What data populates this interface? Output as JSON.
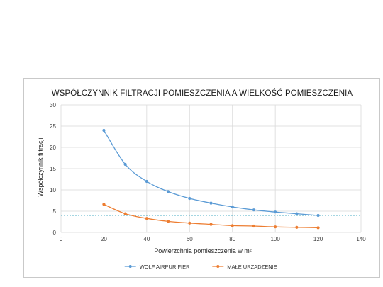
{
  "chart_data": {
    "type": "line",
    "title": "WSPÓŁCZYNNIK FILTRACJI POMIESZCZENIA A WIELKOŚĆ POMIESZCZENIA",
    "xlabel": "Powierzchnia pomieszczenia w m²",
    "ylabel": "Współczynnik filtracji",
    "xlim": [
      0,
      140
    ],
    "ylim": [
      0,
      30
    ],
    "x_ticks": [
      "0",
      "20",
      "40",
      "60",
      "80",
      "100",
      "120",
      "140"
    ],
    "y_ticks": [
      "0",
      "5",
      "10",
      "15",
      "20",
      "25",
      "30"
    ],
    "grid": true,
    "legend_position": "bottom-center",
    "reference_line": {
      "y": 4,
      "color": "#4bacc6",
      "style": "dotted"
    },
    "series": [
      {
        "name": "WOLF AIRPURIFIER",
        "color": "#5b9bd5",
        "x": [
          20,
          30,
          40,
          50,
          60,
          70,
          80,
          90,
          100,
          110,
          120
        ],
        "y": [
          24,
          16,
          12,
          9.6,
          8,
          6.9,
          6,
          5.3,
          4.8,
          4.4,
          4
        ]
      },
      {
        "name": "MAŁE URZĄDZENIE",
        "color": "#ed7d31",
        "x": [
          20,
          30,
          40,
          50,
          60,
          70,
          80,
          90,
          100,
          110,
          120
        ],
        "y": [
          6.6,
          4.4,
          3.3,
          2.6,
          2.2,
          1.9,
          1.6,
          1.5,
          1.3,
          1.2,
          1.1
        ]
      }
    ]
  }
}
